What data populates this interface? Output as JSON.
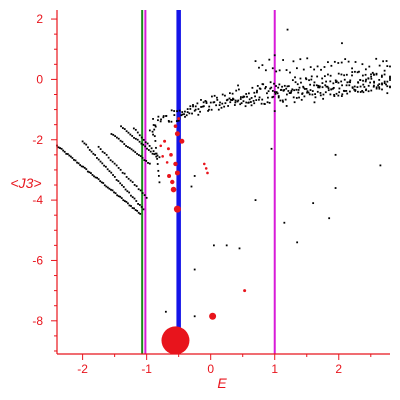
{
  "chart_data": {
    "type": "scatter",
    "title": "",
    "xlabel": "E",
    "ylabel": "<J3>",
    "xlim": [
      -2.4,
      2.8
    ],
    "ylim": [
      -9.1,
      2.3
    ],
    "grid": false,
    "legend": "none",
    "x_ticks": [
      -2,
      -1,
      0,
      1,
      2
    ],
    "y_ticks": [
      -8,
      -6,
      -4,
      -2,
      0,
      2
    ],
    "colors": {
      "axis": "#e8141c",
      "black_points": "#000000",
      "red_points": "#e8141c",
      "blue_line": "#1414e8",
      "magenta_line": "#d81ad8",
      "green_line": "#1a8a1a"
    },
    "vertical_lines": [
      {
        "x": -1.07,
        "color": "#1a8a1a",
        "style": "thin"
      },
      {
        "x": -1.02,
        "color": "#d81ad8",
        "style": "thin"
      },
      {
        "x": -0.5,
        "color": "#1414e8",
        "style": "thick"
      },
      {
        "x": 1.0,
        "color": "#d81ad8",
        "style": "thin"
      }
    ],
    "series": [
      {
        "color": "#e8141c",
        "points": [
          {
            "x": -0.55,
            "y": -8.65,
            "size": 14
          },
          {
            "x": 0.03,
            "y": -7.85,
            "size": 3.5
          },
          {
            "x": 0.53,
            "y": -7.0,
            "size": 1.5
          },
          {
            "x": -0.52,
            "y": -4.3,
            "size": 3.5
          },
          {
            "x": -0.58,
            "y": -3.65,
            "size": 2.8
          },
          {
            "x": -0.6,
            "y": -3.4,
            "size": 2.2
          },
          {
            "x": -0.65,
            "y": -3.2,
            "size": 2.0
          },
          {
            "x": -0.52,
            "y": -3.1,
            "size": 2.5
          },
          {
            "x": -0.55,
            "y": -2.8,
            "size": 2.2
          },
          {
            "x": -0.62,
            "y": -2.5,
            "size": 1.8
          },
          {
            "x": -0.66,
            "y": -2.3,
            "size": 1.5
          },
          {
            "x": -0.45,
            "y": -2.05,
            "size": 2.5
          },
          {
            "x": -0.52,
            "y": -1.8,
            "size": 2.5
          },
          {
            "x": -0.55,
            "y": -1.55,
            "size": 1.8
          },
          {
            "x": -0.5,
            "y": -1.3,
            "size": 1.5
          },
          {
            "x": -0.72,
            "y": -2.05,
            "size": 1.5
          },
          {
            "x": -0.78,
            "y": -2.2,
            "size": 1.3
          },
          {
            "x": -0.75,
            "y": -2.55,
            "size": 1.3
          },
          {
            "x": -0.68,
            "y": -2.75,
            "size": 1.3
          },
          {
            "x": -0.1,
            "y": -2.8,
            "size": 1.3
          },
          {
            "x": -0.07,
            "y": -2.95,
            "size": 1.3
          },
          {
            "x": -0.05,
            "y": -3.1,
            "size": 1.3
          }
        ]
      },
      {
        "color": "#000000",
        "bands": [
          {
            "x0": -2.4,
            "y0": -2.2,
            "x1": -1.1,
            "y1": -4.45,
            "n": 55
          },
          {
            "x0": -2.0,
            "y0": -2.05,
            "x1": -1.05,
            "y1": -4.3,
            "n": 35
          },
          {
            "x0": -1.75,
            "y0": -2.25,
            "x1": -1.0,
            "y1": -3.9,
            "n": 25
          },
          {
            "x0": -1.55,
            "y0": -1.8,
            "x1": -0.95,
            "y1": -2.8,
            "n": 22
          },
          {
            "x0": -1.4,
            "y0": -1.55,
            "x1": -0.85,
            "y1": -2.55,
            "n": 20
          },
          {
            "x0": -1.2,
            "y0": -1.6,
            "x1": -0.8,
            "y1": -2.6,
            "n": 14
          },
          {
            "x0": -0.9,
            "y0": -1.3,
            "x1": -0.8,
            "y1": -3.4,
            "n": 12
          }
        ],
        "curves": [
          {
            "x0": -0.95,
            "y0": -1.85,
            "x1": 2.8,
            "y1": 0.25,
            "n": 90,
            "spread": 0.25
          },
          {
            "x0": -0.9,
            "y0": -1.6,
            "x1": 2.8,
            "y1": -0.1,
            "n": 90,
            "spread": 0.25
          },
          {
            "x0": -0.5,
            "y0": -1.2,
            "x1": 2.8,
            "y1": -0.3,
            "n": 80,
            "spread": 0.2
          },
          {
            "x0": 0.7,
            "y0": 0.5,
            "x1": 2.8,
            "y1": 0.45,
            "n": 40,
            "spread": 0.25
          },
          {
            "x0": 0.3,
            "y0": -0.6,
            "x1": 2.8,
            "y1": 0.0,
            "n": 60,
            "spread": 0.3
          },
          {
            "x0": 1.0,
            "y0": -1.0,
            "x1": 2.8,
            "y1": -0.1,
            "n": 30,
            "spread": 0.3
          }
        ],
        "points": [
          {
            "x": 1.2,
            "y": 1.65
          },
          {
            "x": 2.05,
            "y": 1.2
          },
          {
            "x": 1.0,
            "y": 0.8
          },
          {
            "x": 0.95,
            "y": -2.3
          },
          {
            "x": 1.95,
            "y": -2.5
          },
          {
            "x": 2.65,
            "y": -2.85
          },
          {
            "x": 0.7,
            "y": -4.0
          },
          {
            "x": 1.95,
            "y": -3.6
          },
          {
            "x": 1.6,
            "y": -4.1
          },
          {
            "x": 1.15,
            "y": -4.75
          },
          {
            "x": 1.85,
            "y": -4.6
          },
          {
            "x": 0.25,
            "y": -5.5
          },
          {
            "x": 1.35,
            "y": -5.4
          },
          {
            "x": -0.25,
            "y": -6.3
          },
          {
            "x": -0.7,
            "y": -7.7
          },
          {
            "x": -0.25,
            "y": -7.85
          },
          {
            "x": 0.05,
            "y": -5.5
          },
          {
            "x": 0.45,
            "y": -5.6
          },
          {
            "x": 2.4,
            "y": -0.25
          },
          {
            "x": 2.55,
            "y": 0.15
          },
          {
            "x": -0.25,
            "y": -3.2
          },
          {
            "x": -0.3,
            "y": -3.55
          }
        ]
      }
    ]
  }
}
